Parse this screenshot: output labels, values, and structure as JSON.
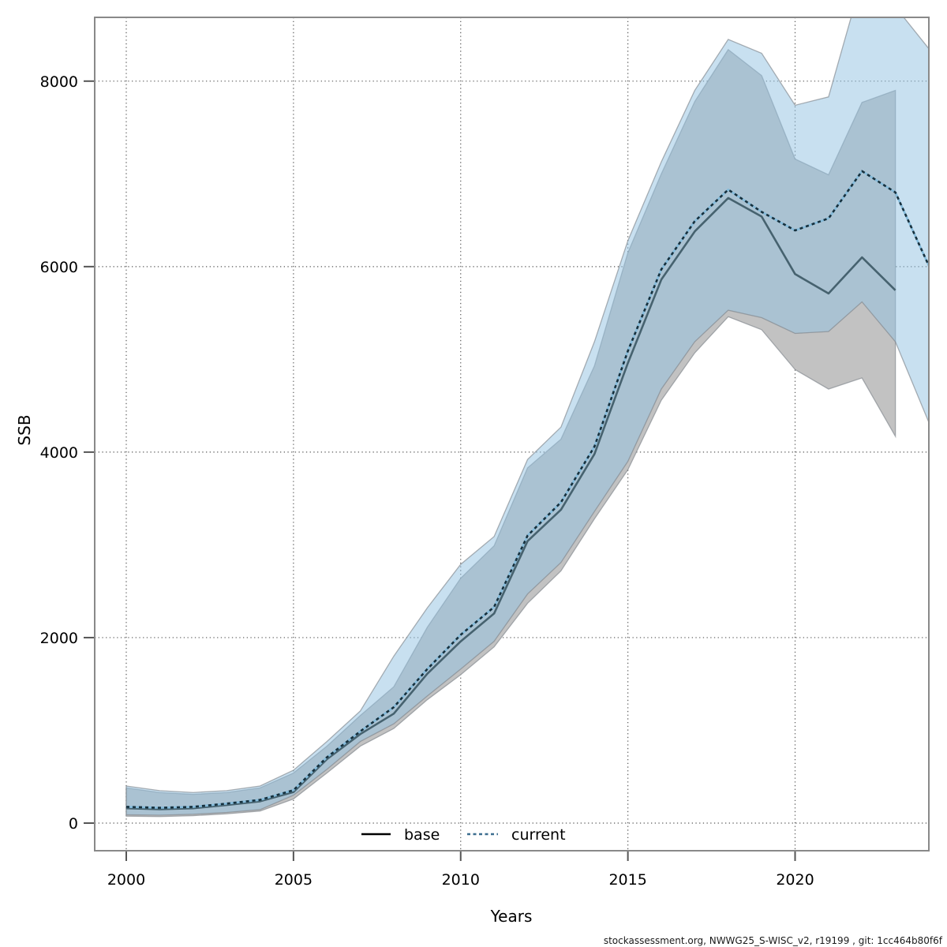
{
  "chart_data": {
    "type": "line",
    "title": "",
    "xlabel": "Years",
    "ylabel": "SSB",
    "xlim": [
      2000,
      2024
    ],
    "ylim": [
      0,
      8700
    ],
    "xticks": [
      2000,
      2005,
      2010,
      2015,
      2020
    ],
    "yticks": [
      0,
      2000,
      4000,
      6000,
      8000
    ],
    "grid": "dotted",
    "legend_position": "bottom-center-inside",
    "x": [
      2000,
      2001,
      2002,
      2003,
      2004,
      2005,
      2006,
      2007,
      2008,
      2009,
      2010,
      2011,
      2012,
      2013,
      2014,
      2015,
      2016,
      2017,
      2018,
      2019,
      2020,
      2021,
      2022,
      2023,
      2024
    ],
    "series": [
      {
        "name": "base",
        "line_style": "solid",
        "line_color": "#46626f",
        "band_color": "#c2c2c2",
        "values": [
          160,
          150,
          160,
          195,
          235,
          335,
          690,
          960,
          1180,
          1610,
          1960,
          2260,
          3040,
          3380,
          3980,
          4960,
          5860,
          6380,
          6740,
          6540,
          5920,
          5710,
          6100,
          5745,
          null
        ],
        "lower": [
          75,
          70,
          80,
          100,
          130,
          260,
          540,
          830,
          1020,
          1330,
          1600,
          1900,
          2370,
          2720,
          3280,
          3810,
          4560,
          5070,
          5460,
          5320,
          4890,
          4680,
          4800,
          4170,
          null
        ],
        "upper": [
          380,
          330,
          310,
          330,
          380,
          540,
          830,
          1160,
          1470,
          2110,
          2640,
          2990,
          3830,
          4140,
          4930,
          6150,
          7000,
          7780,
          8340,
          8060,
          7160,
          6990,
          7770,
          7900,
          null
        ]
      },
      {
        "name": "current",
        "line_style": "dotted",
        "line_color": "#16303d",
        "underlay_color": "#85bbdb",
        "band_color": "rgba(145,193,225,0.5)",
        "values": [
          175,
          165,
          175,
          210,
          250,
          355,
          710,
          990,
          1250,
          1660,
          2030,
          2330,
          3100,
          3460,
          4060,
          5090,
          5970,
          6490,
          6830,
          6590,
          6390,
          6520,
          7030,
          6800,
          6010
        ],
        "lower": [
          90,
          85,
          95,
          115,
          145,
          300,
          580,
          880,
          1070,
          1370,
          1660,
          1960,
          2470,
          2810,
          3360,
          3900,
          4680,
          5190,
          5530,
          5450,
          5280,
          5300,
          5620,
          5190,
          4320
        ],
        "upper": [
          400,
          350,
          330,
          350,
          400,
          570,
          880,
          1210,
          1800,
          2320,
          2790,
          3090,
          3920,
          4270,
          5190,
          6280,
          7130,
          7900,
          8450,
          8300,
          7740,
          7830,
          9100,
          8800,
          8350
        ]
      }
    ]
  },
  "legend": {
    "base_label": "base",
    "current_label": "current"
  },
  "footer": {
    "text": "stockassessment.org, NWWG25_S-WISC_v2, r19199 , git: 1cc464b80f6f"
  }
}
